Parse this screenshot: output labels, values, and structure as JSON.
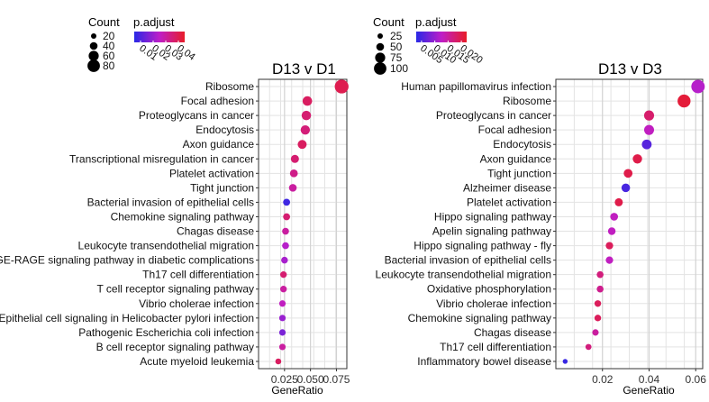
{
  "chart_data": [
    {
      "type": "scatter",
      "title": "D13 v D1",
      "xlabel": "GeneRatio",
      "ylabel": "",
      "xlim": [
        0.0,
        0.085
      ],
      "xticks": [
        0.025,
        0.05,
        0.075
      ],
      "xtick_labels": [
        "0.025",
        "0.050",
        "0.075"
      ],
      "grid": true,
      "legend": {
        "placement": "top-left",
        "size_title": "Count",
        "size_levels": [
          "20",
          "40",
          "60",
          "80"
        ],
        "color_title": "p.adjust",
        "color_ticks": [
          "0.01",
          "0.02",
          "0.03",
          "0.04"
        ],
        "color_range": [
          0.005,
          0.045
        ],
        "count_range": [
          10,
          90
        ]
      },
      "categories": [
        "Ribosome",
        "Focal adhesion",
        "Proteoglycans in cancer",
        "Endocytosis",
        "Axon guidance",
        "Transcriptional misregulation in cancer",
        "Platelet activation",
        "Tight junction",
        "Bacterial invasion of epithelial cells",
        "Chemokine signaling pathway",
        "Chagas disease",
        "Leukocyte transendothelial migration",
        "AGE-RAGE signaling pathway in diabetic complications",
        "Th17 cell differentiation",
        "T cell receptor signaling pathway",
        "Vibrio cholerae infection",
        "Epithelial cell signaling in Helicobacter pylori infection",
        "Pathogenic Escherichia coli infection",
        "B cell receptor signaling pathway",
        "Acute myeloid leukemia"
      ],
      "x": [
        0.08,
        0.047,
        0.046,
        0.045,
        0.042,
        0.035,
        0.034,
        0.033,
        0.027,
        0.027,
        0.026,
        0.026,
        0.025,
        0.024,
        0.024,
        0.023,
        0.023,
        0.023,
        0.023,
        0.019
      ],
      "count": [
        85,
        50,
        49,
        48,
        45,
        38,
        36,
        35,
        29,
        29,
        28,
        28,
        27,
        26,
        26,
        25,
        25,
        25,
        25,
        20
      ],
      "p_adjust": [
        0.04,
        0.038,
        0.036,
        0.035,
        0.038,
        0.036,
        0.033,
        0.03,
        0.008,
        0.036,
        0.03,
        0.024,
        0.022,
        0.036,
        0.03,
        0.026,
        0.02,
        0.016,
        0.03,
        0.038
      ]
    },
    {
      "type": "scatter",
      "title": "D13 v D3",
      "xlabel": "GeneRatio",
      "ylabel": "",
      "xlim": [
        0.0,
        0.063
      ],
      "xticks": [
        0.02,
        0.04,
        0.06
      ],
      "xtick_labels": [
        "0.02",
        "0.04",
        "0.06"
      ],
      "grid": true,
      "legend": {
        "placement": "top-left",
        "size_title": "Count",
        "size_levels": [
          "25",
          "50",
          "75",
          "100"
        ],
        "color_title": "p.adjust",
        "color_ticks": [
          "0.005",
          "0.010",
          "0.015",
          "0.020"
        ],
        "color_range": [
          0.003,
          0.022
        ],
        "count_range": [
          10,
          110
        ]
      },
      "categories": [
        "Human papillomavirus infection",
        "Ribosome",
        "Proteoglycans in cancer",
        "Focal adhesion",
        "Endocytosis",
        "Axon guidance",
        "Tight junction",
        "Alzheimer disease",
        "Platelet activation",
        "Hippo signaling pathway",
        "Apelin signaling pathway",
        "Hippo signaling pathway - fly",
        "Bacterial invasion of epithelial cells",
        "Leukocyte transendothelial migration",
        "Oxidative phosphorylation",
        "Vibrio cholerae infection",
        "Chemokine signaling pathway",
        "Chagas disease",
        "Th17 cell differentiation",
        "Inflammatory bowel disease"
      ],
      "x": [
        0.061,
        0.055,
        0.04,
        0.04,
        0.039,
        0.035,
        0.031,
        0.03,
        0.027,
        0.025,
        0.024,
        0.023,
        0.023,
        0.019,
        0.019,
        0.018,
        0.018,
        0.017,
        0.014,
        0.004
      ],
      "count": [
        100,
        95,
        65,
        64,
        62,
        58,
        52,
        50,
        45,
        42,
        40,
        38,
        38,
        32,
        32,
        30,
        30,
        28,
        24,
        12
      ],
      "p_adjust": [
        0.012,
        0.021,
        0.018,
        0.013,
        0.006,
        0.02,
        0.02,
        0.005,
        0.02,
        0.013,
        0.013,
        0.019,
        0.013,
        0.017,
        0.016,
        0.019,
        0.019,
        0.015,
        0.017,
        0.004
      ]
    }
  ]
}
